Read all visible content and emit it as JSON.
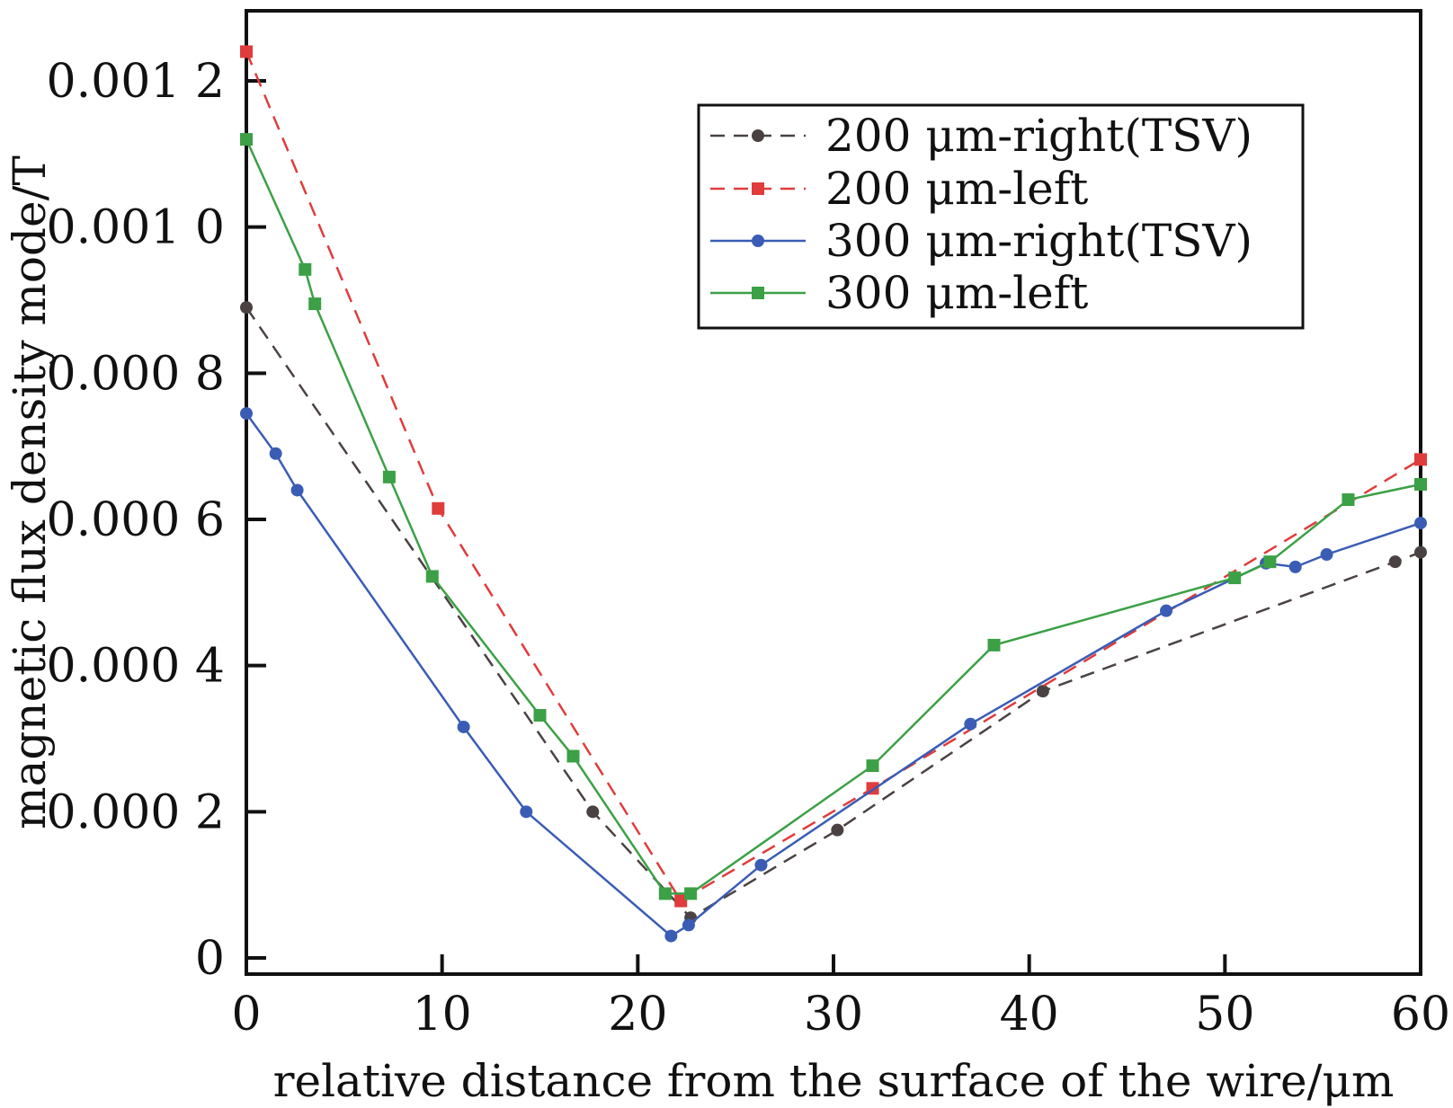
{
  "chart_data": {
    "type": "line",
    "title": "",
    "xlabel": "relative distance from the surface of the wire/μm",
    "ylabel": "magnetic flux density mode/T",
    "xlim": [
      0,
      60
    ],
    "ylim": [
      0,
      0.00129
    ],
    "x_ticks": [
      0,
      10,
      20,
      30,
      40,
      50,
      60
    ],
    "x_tick_labels": [
      "0",
      "10",
      "20",
      "30",
      "40",
      "50",
      "60"
    ],
    "y_ticks": [
      0,
      0.0002,
      0.0004,
      0.0006,
      0.0008,
      0.001,
      0.0012
    ],
    "y_tick_labels": [
      "0",
      "0.000 2",
      "0.000 4",
      "0.000 6",
      "0.000 8",
      "0.001 0",
      "0.001 2"
    ],
    "grid": false,
    "legend_position": "top-right",
    "series": [
      {
        "name": "200 μm-right(TSV)",
        "color": "#4a4242",
        "line_style": "dashed",
        "marker": "circle",
        "points": [
          [
            0,
            0.00089
          ],
          [
            17.7,
            0.0002
          ],
          [
            22.7,
            5.5e-05
          ],
          [
            30.2,
            0.000175
          ],
          [
            40.7,
            0.000365
          ],
          [
            58.7,
            0.000542
          ],
          [
            60,
            0.000555
          ]
        ]
      },
      {
        "name": "200 μm-left",
        "color": "#e03c3c",
        "line_style": "dashed",
        "marker": "square",
        "points": [
          [
            0,
            0.00124
          ],
          [
            9.8,
            0.000615
          ],
          [
            22.2,
            7.8e-05
          ],
          [
            32,
            0.000232
          ],
          [
            60,
            0.000682
          ]
        ]
      },
      {
        "name": "300 μm-right(TSV)",
        "color": "#3a5cb4",
        "line_style": "solid",
        "marker": "circle",
        "points": [
          [
            0,
            0.000745
          ],
          [
            1.5,
            0.00069
          ],
          [
            2.6,
            0.00064
          ],
          [
            11.1,
            0.000316
          ],
          [
            14.3,
            0.0002
          ],
          [
            21.7,
            3e-05
          ],
          [
            22.6,
            4.5e-05
          ],
          [
            26.3,
            0.000127
          ],
          [
            37,
            0.00032
          ],
          [
            47,
            0.000475
          ],
          [
            52.1,
            0.00054
          ],
          [
            53.6,
            0.000535
          ],
          [
            55.2,
            0.000552
          ],
          [
            60,
            0.000595
          ]
        ]
      },
      {
        "name": "300 μm-left",
        "color": "#3ca046",
        "line_style": "solid",
        "marker": "square",
        "points": [
          [
            0,
            0.00112
          ],
          [
            3,
            0.000942
          ],
          [
            3.5,
            0.000895
          ],
          [
            7.3,
            0.000658
          ],
          [
            9.5,
            0.000522
          ],
          [
            15,
            0.000332
          ],
          [
            16.7,
            0.000276
          ],
          [
            21.4,
            8.8e-05
          ],
          [
            22.7,
            8.8e-05
          ],
          [
            32,
            0.000263
          ],
          [
            38.2,
            0.000428
          ],
          [
            50.5,
            0.00052
          ],
          [
            52.3,
            0.000542
          ],
          [
            56.3,
            0.000627
          ],
          [
            60,
            0.000648
          ]
        ]
      }
    ]
  }
}
